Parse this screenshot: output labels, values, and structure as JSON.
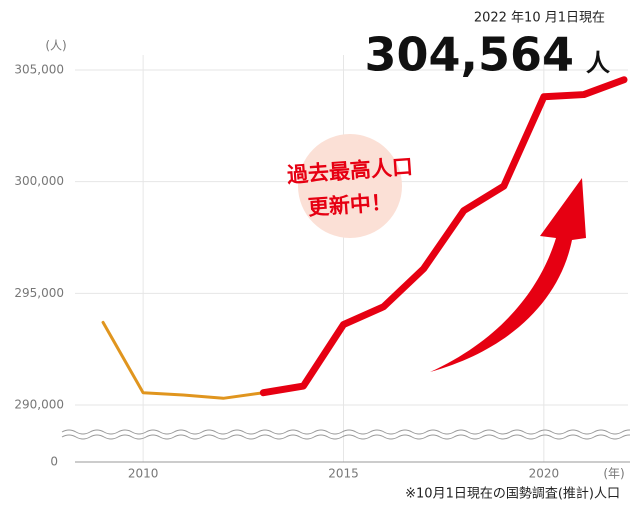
{
  "chart_data": {
    "type": "line",
    "headline_date": "2022 年10 月1日現在",
    "headline_value": "304,564",
    "headline_unit": "人",
    "annotation_lines": [
      "過去最高人口",
      "更新中！"
    ],
    "y_unit": "(人)",
    "x_unit": "(年)",
    "baseline_label": "0",
    "footnote": "※10月1日現在の国勢調査(推計)人口",
    "x": [
      2009,
      2010,
      2011,
      2012,
      2013,
      2014,
      2015,
      2016,
      2017,
      2018,
      2019,
      2020,
      2021,
      2022
    ],
    "series": [
      {
        "color": "#e0951e",
        "values": [
          293700,
          290550,
          290450,
          290300,
          290550,
          null,
          null,
          null,
          null,
          null,
          null,
          null,
          null,
          null
        ]
      },
      {
        "color": "#e60012",
        "values": [
          null,
          null,
          null,
          null,
          290550,
          290850,
          293600,
          294400,
          296100,
          298700,
          299800,
          303800,
          303900,
          304564
        ]
      }
    ],
    "xlim": [
      2008.3,
      2022.1
    ],
    "ylim": [
      290000,
      305000
    ],
    "xticks": [
      2010,
      2015,
      2020
    ],
    "yticks": [
      {
        "value": 290000,
        "label": "290,000"
      },
      {
        "value": 295000,
        "label": "295,000"
      },
      {
        "value": 300000,
        "label": "300,000"
      },
      {
        "value": 305000,
        "label": "305,000"
      }
    ],
    "grid": true
  }
}
